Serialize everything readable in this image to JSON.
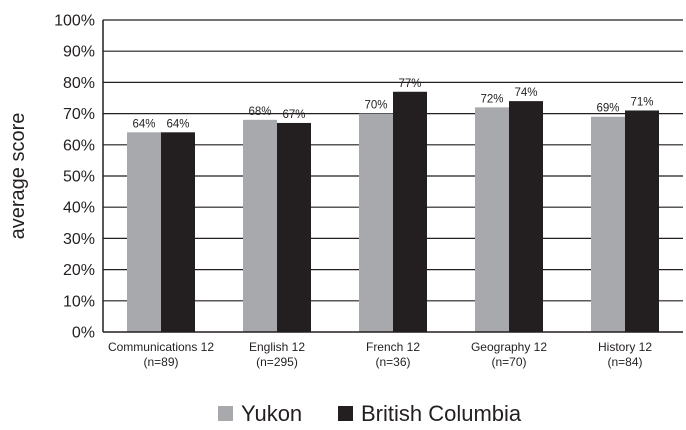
{
  "chart_data": {
    "type": "bar",
    "title": "",
    "xlabel": "",
    "ylabel": "average score",
    "ylim": [
      0,
      100
    ],
    "yticks": [
      0,
      10,
      20,
      30,
      40,
      50,
      60,
      70,
      80,
      90,
      100
    ],
    "ytick_labels": [
      "0%",
      "10%",
      "20%",
      "30%",
      "40%",
      "50%",
      "60%",
      "70%",
      "80%",
      "90%",
      "100%"
    ],
    "categories": [
      [
        "Communications 12",
        "(n=89)"
      ],
      [
        "English 12",
        "(n=295)"
      ],
      [
        "French 12",
        "(n=36)"
      ],
      [
        "Geography 12",
        "(n=70)"
      ],
      [
        "History 12",
        "(n=84)"
      ]
    ],
    "series": [
      {
        "name": "Yukon",
        "color": "#a7a9ac",
        "values": [
          64,
          68,
          70,
          72,
          69
        ],
        "labels": [
          "64%",
          "68%",
          "70%",
          "72%",
          "69%"
        ]
      },
      {
        "name": "British Columbia",
        "color": "#231f20",
        "values": [
          64,
          67,
          77,
          74,
          71
        ],
        "labels": [
          "64%",
          "67%",
          "77%",
          "74%",
          "71%"
        ]
      }
    ],
    "grid": true,
    "legend": "bottom"
  }
}
